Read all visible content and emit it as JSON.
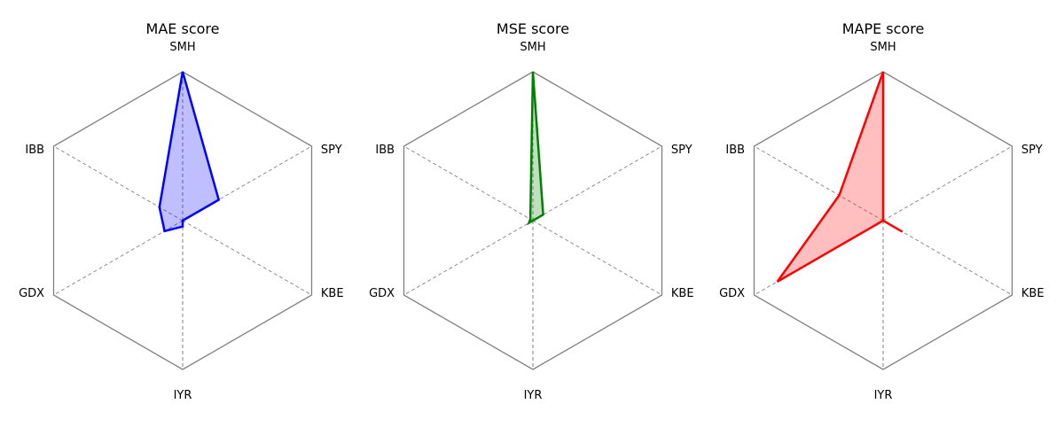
{
  "chart_data": [
    {
      "type": "radar",
      "title": "MAE score",
      "axes": [
        "SMH",
        "SPY",
        "KBE",
        "IYR",
        "GDX",
        "IBB"
      ],
      "values": [
        1.0,
        0.28,
        0.0,
        0.04,
        0.14,
        0.18
      ],
      "rlim": [
        0,
        1
      ],
      "grid": false,
      "color": "#0000ff"
    },
    {
      "type": "radar",
      "title": "MSE score",
      "axes": [
        "SMH",
        "SPY",
        "KBE",
        "IYR",
        "GDX",
        "IBB"
      ],
      "values": [
        1.0,
        0.08,
        0.0,
        0.0,
        0.03,
        0.02
      ],
      "rlim": [
        0,
        1
      ],
      "grid": false,
      "color": "#008000"
    },
    {
      "type": "radar",
      "title": "MAPE score",
      "axes": [
        "SMH",
        "SPY",
        "KBE",
        "IYR",
        "GDX",
        "IBB"
      ],
      "values": [
        1.0,
        0.0,
        0.15,
        0.0,
        0.82,
        0.34
      ],
      "rlim": [
        0,
        1
      ],
      "grid": false,
      "color": "#ff0000"
    }
  ]
}
